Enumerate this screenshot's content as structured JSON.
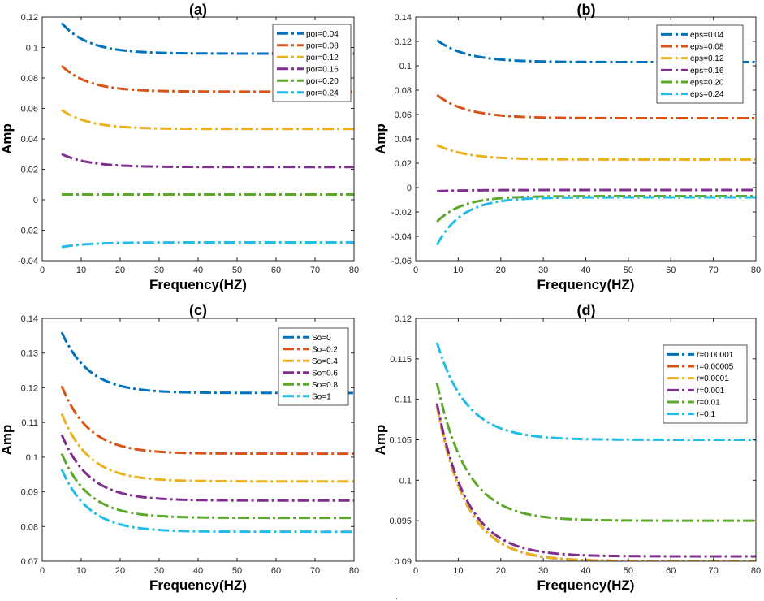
{
  "figure": {
    "stray_mark": ","
  },
  "chart_data": [
    {
      "type": "line",
      "panel_label": "(a)",
      "xlabel": "Frequency(HZ)",
      "ylabel": "Amp",
      "xlim": [
        0,
        80
      ],
      "ylim": [
        -0.04,
        0.12
      ],
      "xticks": [
        0,
        10,
        20,
        30,
        40,
        50,
        60,
        70,
        80
      ],
      "xtick_labels": [
        "0",
        "10",
        "20",
        "30",
        "40",
        "50",
        "60",
        "70",
        "80"
      ],
      "yticks": [
        -0.04,
        -0.02,
        0,
        0.02,
        0.04,
        0.06,
        0.08,
        0.1,
        0.12
      ],
      "ytick_labels": [
        "-0.04",
        "-0.02",
        "0",
        "0.02",
        "0.04",
        "0.06",
        "0.08",
        "0.1",
        "0.12"
      ],
      "legend_position": "top-right",
      "x_start": 5,
      "series": [
        {
          "name": "por=0.04",
          "color": "#0072BD",
          "y_start": 0.116,
          "y_end": 0.096,
          "tau": 7
        },
        {
          "name": "por=0.08",
          "color": "#D95319",
          "y_start": 0.088,
          "y_end": 0.071,
          "tau": 7
        },
        {
          "name": "por=0.12",
          "color": "#EDB120",
          "y_start": 0.059,
          "y_end": 0.0465,
          "tau": 7
        },
        {
          "name": "por=0.16",
          "color": "#7E2F8E",
          "y_start": 0.03,
          "y_end": 0.0215,
          "tau": 7
        },
        {
          "name": "por=0.20",
          "color": "#5BA82A",
          "y_start": 0.0035,
          "y_end": 0.0035,
          "tau": 7
        },
        {
          "name": "por=0.24",
          "color": "#22BCE8",
          "y_start": -0.031,
          "y_end": -0.028,
          "tau": 7
        }
      ]
    },
    {
      "type": "line",
      "panel_label": "(b)",
      "xlabel": "Frequency(HZ)",
      "ylabel": "Amp",
      "xlim": [
        0,
        80
      ],
      "ylim": [
        -0.06,
        0.14
      ],
      "xticks": [
        0,
        10,
        20,
        30,
        40,
        50,
        60,
        70,
        80
      ],
      "xtick_labels": [
        "0",
        "10",
        "20",
        "30",
        "40",
        "50",
        "60",
        "70",
        "80"
      ],
      "yticks": [
        -0.06,
        -0.04,
        -0.02,
        0,
        0.02,
        0.04,
        0.06,
        0.08,
        0.1,
        0.12,
        0.14
      ],
      "ytick_labels": [
        "-0.06",
        "-0.04",
        "-0.02",
        "0",
        "0.02",
        "0.04",
        "0.06",
        "0.08",
        "0.1",
        "0.12",
        "0.14"
      ],
      "legend_position": "top-right",
      "x_start": 5,
      "series": [
        {
          "name": "eps=0.04",
          "color": "#0072BD",
          "y_start": 0.121,
          "y_end": 0.103,
          "tau": 7
        },
        {
          "name": "eps=0.08",
          "color": "#D95319",
          "y_start": 0.076,
          "y_end": 0.057,
          "tau": 7
        },
        {
          "name": "eps=0.12",
          "color": "#EDB120",
          "y_start": 0.035,
          "y_end": 0.023,
          "tau": 7
        },
        {
          "name": "eps=0.16",
          "color": "#7E2F8E",
          "y_start": -0.003,
          "y_end": -0.002,
          "tau": 7
        },
        {
          "name": "eps=0.20",
          "color": "#5BA82A",
          "y_start": -0.028,
          "y_end": -0.007,
          "tau": 6
        },
        {
          "name": "eps=0.24",
          "color": "#22BCE8",
          "y_start": -0.047,
          "y_end": -0.008,
          "tau": 6
        }
      ]
    },
    {
      "type": "line",
      "panel_label": "(c)",
      "xlabel": "Frequency(HZ)",
      "ylabel": "Amp",
      "xlim": [
        0,
        80
      ],
      "ylim": [
        0.07,
        0.14
      ],
      "xticks": [
        0,
        10,
        20,
        30,
        40,
        50,
        60,
        70,
        80
      ],
      "xtick_labels": [
        "0",
        "10",
        "20",
        "30",
        "40",
        "50",
        "60",
        "70",
        "80"
      ],
      "yticks": [
        0.07,
        0.08,
        0.09,
        0.1,
        0.11,
        0.12,
        0.13,
        0.14
      ],
      "ytick_labels": [
        "0.07",
        "0.08",
        "0.09",
        "0.1",
        "0.11",
        "0.12",
        "0.13",
        "0.14"
      ],
      "legend_position": "top-right",
      "x_start": 5,
      "series": [
        {
          "name": "So=0",
          "color": "#0072BD",
          "y_start": 0.136,
          "y_end": 0.1185,
          "tau": 7
        },
        {
          "name": "So=0.2",
          "color": "#D95319",
          "y_start": 0.1205,
          "y_end": 0.101,
          "tau": 7
        },
        {
          "name": "So=0.4",
          "color": "#EDB120",
          "y_start": 0.1125,
          "y_end": 0.093,
          "tau": 7
        },
        {
          "name": "So=0.6",
          "color": "#7E2F8E",
          "y_start": 0.1065,
          "y_end": 0.0875,
          "tau": 7
        },
        {
          "name": "So=0.8",
          "color": "#5BA82A",
          "y_start": 0.101,
          "y_end": 0.0825,
          "tau": 7
        },
        {
          "name": "So=1",
          "color": "#22BCE8",
          "y_start": 0.0965,
          "y_end": 0.0785,
          "tau": 7
        }
      ]
    },
    {
      "type": "line",
      "panel_label": "(d)",
      "xlabel": "Frequency(HZ)",
      "ylabel": "Amp",
      "xlim": [
        0,
        80
      ],
      "ylim": [
        0.09,
        0.12
      ],
      "xticks": [
        0,
        10,
        20,
        30,
        40,
        50,
        60,
        70,
        80
      ],
      "xtick_labels": [
        "0",
        "10",
        "20",
        "30",
        "40",
        "50",
        "60",
        "70",
        "80"
      ],
      "yticks": [
        0.09,
        0.095,
        0.1,
        0.105,
        0.11,
        0.115,
        0.12
      ],
      "ytick_labels": [
        "0.09",
        "0.095",
        "0.1",
        "0.105",
        "0.11",
        "0.115",
        "0.12"
      ],
      "legend_position": "top-right",
      "x_start": 5,
      "series": [
        {
          "name": "r=0.00001",
          "color": "#0072BD",
          "y_start": 0.1092,
          "y_end": 0.09,
          "tau": 7
        },
        {
          "name": "r=0.00005",
          "color": "#D95319",
          "y_start": 0.1092,
          "y_end": 0.09,
          "tau": 7
        },
        {
          "name": "r=0.0001",
          "color": "#EDB120",
          "y_start": 0.1092,
          "y_end": 0.09,
          "tau": 7
        },
        {
          "name": "r=0.001",
          "color": "#7E2F8E",
          "y_start": 0.1095,
          "y_end": 0.0906,
          "tau": 7
        },
        {
          "name": "r=0.01",
          "color": "#5BA82A",
          "y_start": 0.112,
          "y_end": 0.095,
          "tau": 7
        },
        {
          "name": "r=0.1",
          "color": "#22BCE8",
          "y_start": 0.117,
          "y_end": 0.105,
          "tau": 7
        }
      ]
    }
  ]
}
